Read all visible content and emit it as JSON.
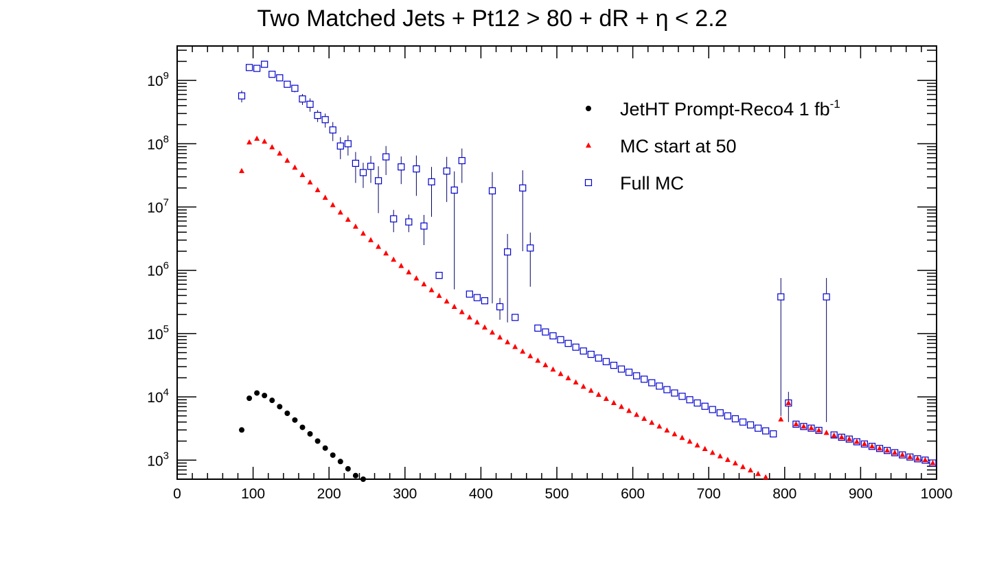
{
  "chart_data": {
    "type": "scatter",
    "title": "Two Matched Jets + Pt12 > 80 + dR + η < 2.2",
    "xlabel": "",
    "ylabel": "",
    "xlim": [
      0,
      1000
    ],
    "ylim": [
      500,
      3500000000
    ],
    "yscale": "log",
    "grid": false,
    "legend_position": "top-right",
    "x_ticks": [
      "0",
      "100",
      "200",
      "300",
      "400",
      "500",
      "600",
      "700",
      "800",
      "900",
      "1000"
    ],
    "y_ticks": [
      {
        "base": "10",
        "exp": "3",
        "value": 1000
      },
      {
        "base": "10",
        "exp": "4",
        "value": 10000
      },
      {
        "base": "10",
        "exp": "5",
        "value": 100000
      },
      {
        "base": "10",
        "exp": "6",
        "value": 1000000
      },
      {
        "base": "10",
        "exp": "7",
        "value": 10000000
      },
      {
        "base": "10",
        "exp": "8",
        "value": 100000000
      },
      {
        "base": "10",
        "exp": "9",
        "value": 1000000000
      }
    ],
    "series": [
      {
        "name": "JetHT Prompt-Reco4 1 fb",
        "name_superscript": "-1",
        "marker": "circle",
        "color": "#000000",
        "points": [
          [
            85,
            3000
          ],
          [
            95,
            9500
          ],
          [
            105,
            11500
          ],
          [
            115,
            10500
          ],
          [
            125,
            8800
          ],
          [
            135,
            7000
          ],
          [
            145,
            5500
          ],
          [
            155,
            4300
          ],
          [
            165,
            3300
          ],
          [
            175,
            2600
          ],
          [
            185,
            2000
          ],
          [
            195,
            1550
          ],
          [
            205,
            1200
          ],
          [
            215,
            950
          ],
          [
            225,
            730
          ],
          [
            235,
            570
          ],
          [
            245,
            500
          ]
        ]
      },
      {
        "name": "MC start at 50",
        "marker": "triangle",
        "color": "#ff0000",
        "points": [
          [
            85,
            37000000
          ],
          [
            95,
            105000000
          ],
          [
            105,
            120000000
          ],
          [
            115,
            108000000
          ],
          [
            125,
            88000000
          ],
          [
            135,
            70000000
          ],
          [
            145,
            54000000
          ],
          [
            155,
            42000000
          ],
          [
            165,
            32000000
          ],
          [
            175,
            24500000
          ],
          [
            185,
            18500000
          ],
          [
            195,
            14000000
          ],
          [
            205,
            10700000
          ],
          [
            215,
            8200000
          ],
          [
            225,
            6300000
          ],
          [
            235,
            4900000
          ],
          [
            245,
            3800000
          ],
          [
            255,
            3000000
          ],
          [
            265,
            2350000
          ],
          [
            275,
            1850000
          ],
          [
            285,
            1470000
          ],
          [
            295,
            1170000
          ],
          [
            305,
            930000
          ],
          [
            315,
            745000
          ],
          [
            325,
            600000
          ],
          [
            335,
            485000
          ],
          [
            345,
            395000
          ],
          [
            355,
            322000
          ],
          [
            365,
            264000
          ],
          [
            375,
            218000
          ],
          [
            385,
            180000
          ],
          [
            395,
            150000
          ],
          [
            405,
            125000
          ],
          [
            415,
            104000
          ],
          [
            425,
            87000
          ],
          [
            435,
            73000
          ],
          [
            445,
            61500
          ],
          [
            455,
            52000
          ],
          [
            465,
            44000
          ],
          [
            475,
            37300
          ],
          [
            485,
            31700
          ],
          [
            495,
            27000
          ],
          [
            505,
            23000
          ],
          [
            515,
            19700
          ],
          [
            525,
            16900
          ],
          [
            535,
            14500
          ],
          [
            545,
            12500
          ],
          [
            555,
            10800
          ],
          [
            565,
            9300
          ],
          [
            575,
            8000
          ],
          [
            585,
            6950
          ],
          [
            595,
            6000
          ],
          [
            605,
            5200
          ],
          [
            615,
            4500
          ],
          [
            625,
            3900
          ],
          [
            635,
            3400
          ],
          [
            645,
            2950
          ],
          [
            655,
            2570
          ],
          [
            665,
            2250
          ],
          [
            675,
            1960
          ],
          [
            685,
            1710
          ],
          [
            695,
            1500
          ],
          [
            705,
            1310
          ],
          [
            715,
            1150
          ],
          [
            725,
            1010
          ],
          [
            735,
            890
          ],
          [
            745,
            780
          ],
          [
            755,
            690
          ],
          [
            765,
            605
          ],
          [
            775,
            535
          ],
          [
            785,
            470
          ],
          [
            795,
            4400
          ],
          [
            805,
            8000
          ],
          [
            815,
            3700
          ],
          [
            825,
            3400
          ],
          [
            835,
            3200
          ],
          [
            845,
            2950
          ],
          [
            855,
            2700
          ],
          [
            865,
            2450
          ],
          [
            875,
            2300
          ],
          [
            885,
            2150
          ],
          [
            895,
            1950
          ],
          [
            905,
            1800
          ],
          [
            915,
            1650
          ],
          [
            925,
            1530
          ],
          [
            935,
            1420
          ],
          [
            945,
            1310
          ],
          [
            955,
            1210
          ],
          [
            965,
            1120
          ],
          [
            975,
            1050
          ],
          [
            985,
            1000
          ],
          [
            995,
            900
          ]
        ]
      },
      {
        "name": "Full MC",
        "marker": "open-square",
        "color": "#0000cc",
        "points": [
          [
            85,
            570000000,
            120000000
          ],
          [
            95,
            1600000000,
            100000000
          ],
          [
            105,
            1550000000,
            100000000
          ],
          [
            115,
            1800000000,
            100000000
          ],
          [
            125,
            1250000000,
            100000000
          ],
          [
            135,
            1100000000,
            100000000
          ],
          [
            145,
            870000000,
            100000000
          ],
          [
            155,
            750000000,
            100000000
          ],
          [
            165,
            510000000,
            100000000
          ],
          [
            175,
            420000000,
            100000000
          ],
          [
            185,
            280000000,
            60000000
          ],
          [
            195,
            240000000,
            60000000
          ],
          [
            205,
            165000000,
            55000000
          ],
          [
            215,
            92000000,
            35000000
          ],
          [
            225,
            100000000,
            35000000
          ],
          [
            235,
            49000000,
            25000000
          ],
          [
            245,
            35000000,
            15000000
          ],
          [
            255,
            44000000,
            20000000
          ],
          [
            265,
            26000000,
            18000000
          ],
          [
            275,
            62000000,
            30000000
          ],
          [
            285,
            6500000,
            2500000
          ],
          [
            295,
            43000000,
            20000000
          ],
          [
            305,
            5800000,
            1800000
          ],
          [
            315,
            40000000,
            25000000
          ],
          [
            325,
            5000000,
            2500000
          ],
          [
            335,
            25000000,
            18000000
          ],
          [
            345,
            830000,
            60000
          ],
          [
            355,
            37000000,
            25000000
          ],
          [
            365,
            18500000,
            18000000
          ],
          [
            375,
            54000000,
            30000000
          ],
          [
            385,
            420000,
            30000
          ],
          [
            395,
            370000,
            30000
          ],
          [
            405,
            330000,
            30000
          ],
          [
            415,
            18000000,
            17700000
          ],
          [
            425,
            265000,
            100000
          ],
          [
            435,
            1950000,
            1800000
          ],
          [
            445,
            180000,
            15000
          ],
          [
            455,
            20000000,
            18000000
          ],
          [
            465,
            2250000,
            1700000
          ],
          [
            475,
            122000,
            8000
          ],
          [
            485,
            106000,
            6000
          ],
          [
            495,
            92000,
            5000
          ],
          [
            505,
            80000,
            4500
          ],
          [
            515,
            70000,
            4000
          ],
          [
            525,
            61000,
            3500
          ],
          [
            535,
            53000,
            3000
          ],
          [
            545,
            47000,
            2500
          ],
          [
            555,
            41000,
            2300
          ],
          [
            565,
            36000,
            2000
          ],
          [
            575,
            31500,
            1800
          ],
          [
            585,
            27500,
            1600
          ],
          [
            595,
            24500,
            1400
          ],
          [
            605,
            21500,
            1200
          ],
          [
            615,
            19000,
            1100
          ],
          [
            625,
            16700,
            1000
          ],
          [
            635,
            14800,
            900
          ],
          [
            645,
            13000,
            800
          ],
          [
            655,
            11500,
            700
          ],
          [
            665,
            10200,
            600
          ],
          [
            675,
            9000,
            500
          ],
          [
            685,
            8000,
            450
          ],
          [
            695,
            7100,
            400
          ],
          [
            705,
            6300,
            350
          ],
          [
            715,
            5600,
            300
          ],
          [
            725,
            5000,
            280
          ],
          [
            735,
            4500,
            250
          ],
          [
            745,
            4000,
            220
          ],
          [
            755,
            3600,
            200
          ],
          [
            765,
            3200,
            180
          ],
          [
            775,
            2900,
            160
          ],
          [
            785,
            2600,
            150
          ],
          [
            795,
            380000,
            375000
          ],
          [
            805,
            8000,
            4000
          ],
          [
            815,
            3700,
            200
          ],
          [
            825,
            3400,
            180
          ],
          [
            835,
            3200,
            170
          ],
          [
            845,
            2950,
            160
          ],
          [
            855,
            380000,
            376000
          ],
          [
            865,
            2500,
            140
          ],
          [
            875,
            2300,
            130
          ],
          [
            885,
            2150,
            120
          ],
          [
            895,
            1950,
            110
          ],
          [
            905,
            1800,
            100
          ],
          [
            915,
            1650,
            95
          ],
          [
            925,
            1530,
            90
          ],
          [
            935,
            1420,
            85
          ],
          [
            945,
            1310,
            80
          ],
          [
            955,
            1210,
            75
          ],
          [
            965,
            1120,
            70
          ],
          [
            975,
            1050,
            65
          ],
          [
            985,
            1000,
            60
          ],
          [
            995,
            900,
            55
          ]
        ]
      }
    ]
  }
}
